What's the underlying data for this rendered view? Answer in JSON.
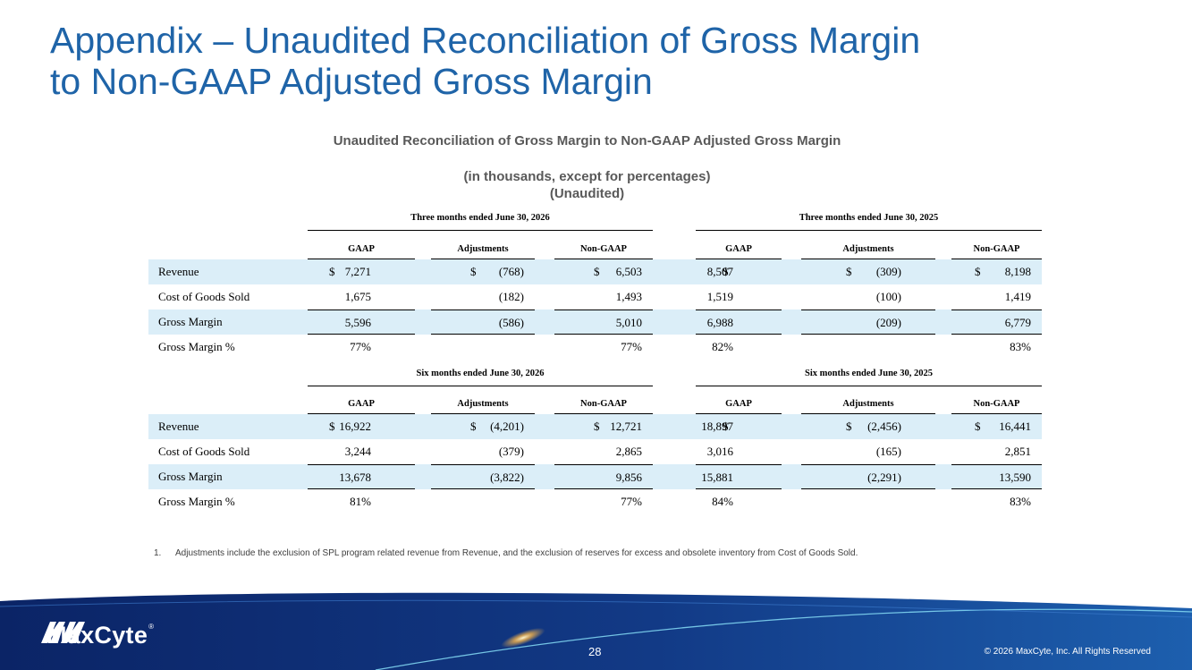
{
  "slide": {
    "title_line1": "Appendix – Unaudited Reconciliation of Gross Margin",
    "title_line2": "to Non-GAAP Adjusted Gross Margin"
  },
  "table": {
    "title": "Unaudited Reconciliation of Gross Margin to Non-GAAP Adjusted Gross Margin",
    "subtitle": "(in thousands, except for percentages)",
    "unaudited": "(Unaudited)"
  },
  "columns": {
    "gaap": "GAAP",
    "adjustments": "Adjustments",
    "nongaap": "Non-GAAP"
  },
  "sections": [
    {
      "period_left": "Three months ended June 30, 2026",
      "period_right": "Three months ended June 30, 2025",
      "rows": [
        {
          "label": "Revenue",
          "cells": [
            {
              "cur": "$",
              "val": "7,271"
            },
            {
              "cur": "$",
              "val": "(768)"
            },
            {
              "cur": "$",
              "val": "6,503"
            },
            {
              "cur": "$",
              "val": "8,507"
            },
            {
              "cur": "$",
              "val": "(309)"
            },
            {
              "cur": "$",
              "val": "8,198"
            }
          ]
        },
        {
          "label": "Cost of Goods Sold",
          "cells": [
            {
              "cur": "",
              "val": "1,675"
            },
            {
              "cur": "",
              "val": "(182)"
            },
            {
              "cur": "",
              "val": "1,493"
            },
            {
              "cur": "",
              "val": "1,519"
            },
            {
              "cur": "",
              "val": "(100)"
            },
            {
              "cur": "",
              "val": "1,419"
            }
          ]
        },
        {
          "label": "Gross Margin",
          "cells": [
            {
              "cur": "",
              "val": "5,596"
            },
            {
              "cur": "",
              "val": "(586)"
            },
            {
              "cur": "",
              "val": "5,010"
            },
            {
              "cur": "",
              "val": "6,988"
            },
            {
              "cur": "",
              "val": "(209)"
            },
            {
              "cur": "",
              "val": "6,779"
            }
          ]
        },
        {
          "label": "Gross Margin %",
          "cells": [
            {
              "cur": "",
              "val": "77%"
            },
            {
              "cur": "",
              "val": ""
            },
            {
              "cur": "",
              "val": "77%"
            },
            {
              "cur": "",
              "val": "82%"
            },
            {
              "cur": "",
              "val": ""
            },
            {
              "cur": "",
              "val": "83%"
            }
          ]
        }
      ]
    },
    {
      "period_left": "Six months ended June 30, 2026",
      "period_right": "Six months ended June 30, 2025",
      "rows": [
        {
          "label": "Revenue",
          "cells": [
            {
              "cur": "$",
              "val": "16,922"
            },
            {
              "cur": "$",
              "val": "(4,201)"
            },
            {
              "cur": "$",
              "val": "12,721"
            },
            {
              "cur": "$",
              "val": "18,897"
            },
            {
              "cur": "$",
              "val": "(2,456)"
            },
            {
              "cur": "$",
              "val": "16,441"
            }
          ]
        },
        {
          "label": "Cost of Goods Sold",
          "cells": [
            {
              "cur": "",
              "val": "3,244"
            },
            {
              "cur": "",
              "val": "(379)"
            },
            {
              "cur": "",
              "val": "2,865"
            },
            {
              "cur": "",
              "val": "3,016"
            },
            {
              "cur": "",
              "val": "(165)"
            },
            {
              "cur": "",
              "val": "2,851"
            }
          ]
        },
        {
          "label": "Gross Margin",
          "cells": [
            {
              "cur": "",
              "val": "13,678"
            },
            {
              "cur": "",
              "val": "(3,822)"
            },
            {
              "cur": "",
              "val": "9,856"
            },
            {
              "cur": "",
              "val": "15,881"
            },
            {
              "cur": "",
              "val": "(2,291)"
            },
            {
              "cur": "",
              "val": "13,590"
            }
          ]
        },
        {
          "label": "Gross Margin %",
          "cells": [
            {
              "cur": "",
              "val": "81%"
            },
            {
              "cur": "",
              "val": ""
            },
            {
              "cur": "",
              "val": "77%"
            },
            {
              "cur": "",
              "val": "84%"
            },
            {
              "cur": "",
              "val": ""
            },
            {
              "cur": "",
              "val": "83%"
            }
          ]
        }
      ]
    }
  ],
  "footnote": {
    "number": "1.",
    "text": "Adjustments include the exclusion of SPL program related revenue from Revenue, and the exclusion of reserves for excess and obsolete inventory from Cost of Goods Sold."
  },
  "footer": {
    "logo_text": "MaxCyte",
    "logo_reg": "®",
    "page_number": "28",
    "copyright": "© 2026 MaxCyte, Inc. All Rights Reserved"
  },
  "colors": {
    "title_blue": "#1f64a8",
    "row_shade": "#dbeef8",
    "footer_navy": "#0d2a6b"
  }
}
